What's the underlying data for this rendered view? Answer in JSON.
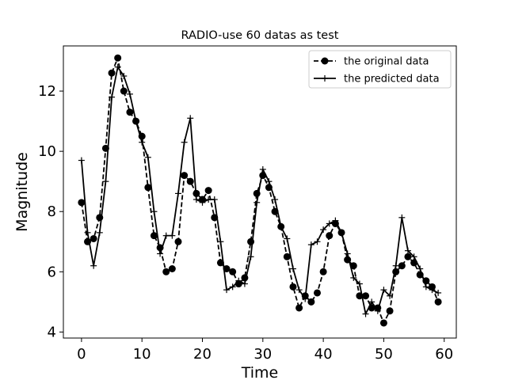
{
  "chart_data": {
    "type": "line",
    "title": "RADIO-use 60 datas as test",
    "xlabel": "Time",
    "ylabel": "Magnitude",
    "xlim": [
      -3,
      62
    ],
    "ylim": [
      3.8,
      13.5
    ],
    "xticks": [
      "0",
      "10",
      "20",
      "30",
      "40",
      "50",
      "60"
    ],
    "yticks": [
      "4",
      "6",
      "8",
      "10",
      "12"
    ],
    "legend_position": "top-right",
    "grid": false,
    "x": [
      0,
      1,
      2,
      3,
      4,
      5,
      6,
      7,
      8,
      9,
      10,
      11,
      12,
      13,
      14,
      15,
      16,
      17,
      18,
      19,
      20,
      21,
      22,
      23,
      24,
      25,
      26,
      27,
      28,
      29,
      30,
      31,
      32,
      33,
      34,
      35,
      36,
      37,
      38,
      39,
      40,
      41,
      42,
      43,
      44,
      45,
      46,
      47,
      48,
      49,
      50,
      51,
      52,
      53,
      54,
      55,
      56,
      57,
      58,
      59
    ],
    "series": [
      {
        "name": "the original data",
        "style": "dashed-circle",
        "color": "#000000",
        "values": [
          8.3,
          7.0,
          7.1,
          7.8,
          10.1,
          12.6,
          13.1,
          12.0,
          11.3,
          11.0,
          10.5,
          8.8,
          7.2,
          6.8,
          6.0,
          6.1,
          7.0,
          9.2,
          9.0,
          8.6,
          8.4,
          8.7,
          7.8,
          6.3,
          6.1,
          6.0,
          5.6,
          5.8,
          7.0,
          8.6,
          9.2,
          8.8,
          8.0,
          7.5,
          6.5,
          5.5,
          4.8,
          5.2,
          5.0,
          5.3,
          6.0,
          7.2,
          7.6,
          7.3,
          6.4,
          6.2,
          5.2,
          5.2,
          4.8,
          4.8,
          4.3,
          4.7,
          6.0,
          6.2,
          6.5,
          6.3,
          5.9,
          5.7,
          5.5,
          5.0
        ]
      },
      {
        "name": "the predicted data",
        "style": "solid-plus",
        "color": "#000000",
        "values": [
          9.7,
          7.3,
          6.2,
          7.3,
          9.0,
          11.8,
          12.8,
          12.5,
          11.9,
          11.0,
          10.3,
          9.8,
          8.0,
          6.6,
          7.2,
          7.2,
          8.6,
          10.3,
          11.1,
          8.4,
          8.3,
          8.4,
          8.4,
          7.0,
          5.4,
          5.5,
          5.7,
          5.6,
          6.5,
          8.3,
          9.4,
          9.0,
          8.4,
          7.5,
          7.1,
          6.1,
          5.4,
          5.1,
          6.9,
          7.0,
          7.4,
          7.6,
          7.7,
          7.3,
          6.6,
          5.8,
          5.6,
          4.6,
          5.0,
          4.7,
          5.4,
          5.2,
          6.2,
          7.8,
          6.7,
          6.5,
          6.1,
          5.5,
          5.4,
          5.3
        ]
      }
    ]
  }
}
